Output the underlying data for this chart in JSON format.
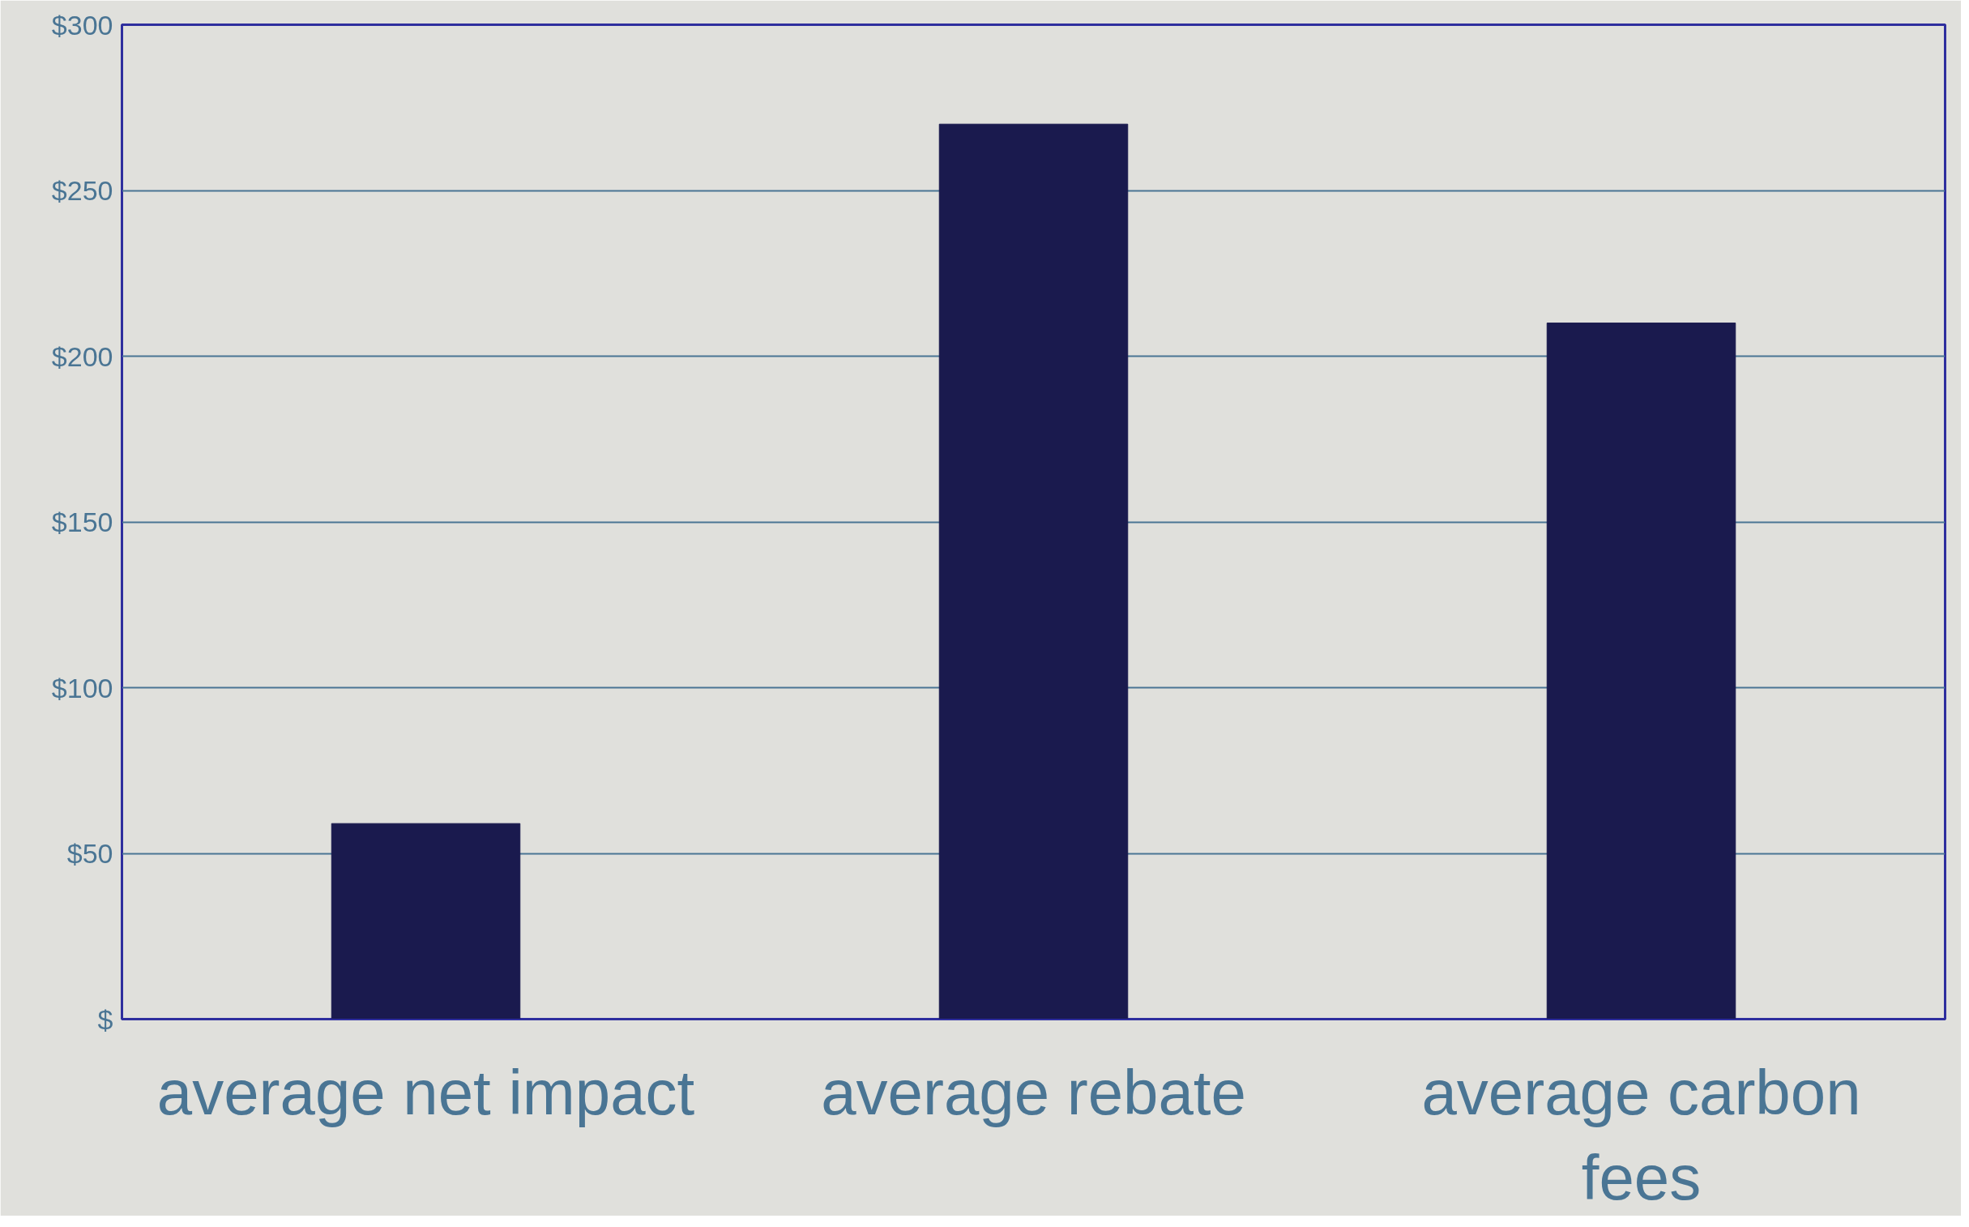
{
  "chart_data": {
    "type": "bar",
    "categories": [
      "average net impact",
      "average rebate",
      "average carbon fees"
    ],
    "values": [
      59,
      270,
      210
    ],
    "color": "#1a1a4e",
    "ylim": [
      0,
      300
    ],
    "yticks": [
      {
        "value": 0,
        "label": "$"
      },
      {
        "value": 50,
        "label": "$50"
      },
      {
        "value": 100,
        "label": "$100"
      },
      {
        "value": 150,
        "label": "$150"
      },
      {
        "value": 200,
        "label": "$200"
      },
      {
        "value": 250,
        "label": "$250"
      },
      {
        "value": 300,
        "label": "$300"
      }
    ],
    "grid": "y"
  }
}
